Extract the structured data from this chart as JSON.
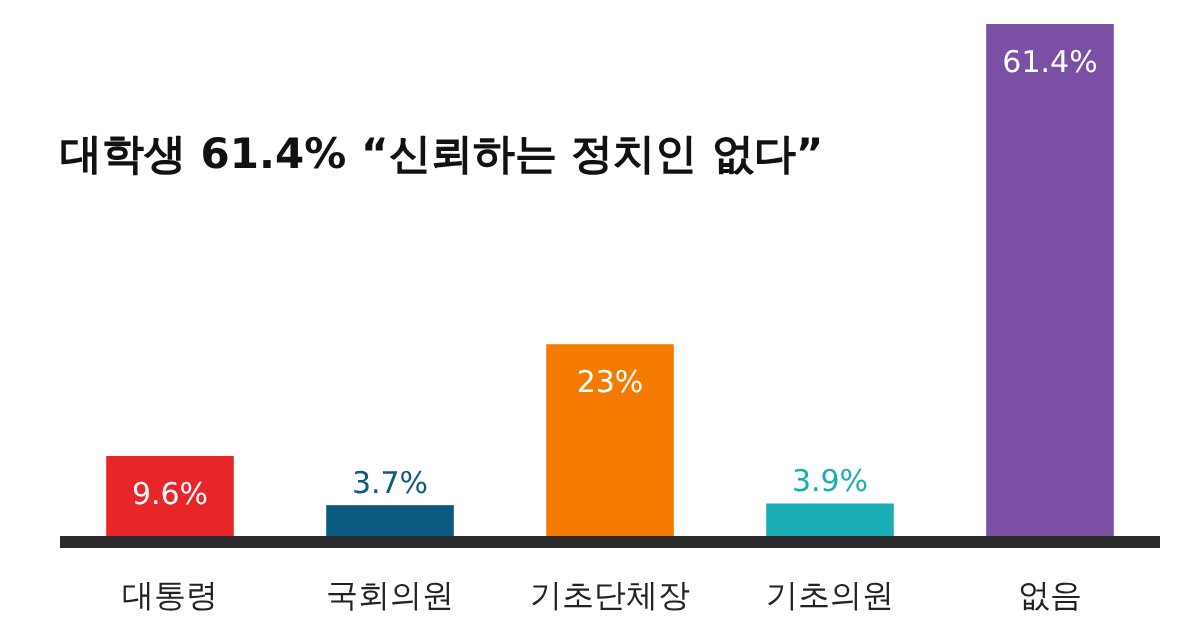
{
  "chart_data": {
    "type": "bar",
    "title": "대학생 61.4% “신뢰하는 정치인 없다”",
    "categories": [
      "대통령",
      "국회의원",
      "기초단체장",
      "기초의원",
      "없음"
    ],
    "values": [
      9.6,
      3.7,
      23,
      3.9,
      61.4
    ],
    "colors": [
      "#e8262a",
      "#0d5a80",
      "#f57a00",
      "#1aaeb4",
      "#7b4fa3"
    ],
    "value_labels": [
      "9.6%",
      "3.7%",
      "23%",
      "3.9%",
      "61.4%"
    ]
  }
}
